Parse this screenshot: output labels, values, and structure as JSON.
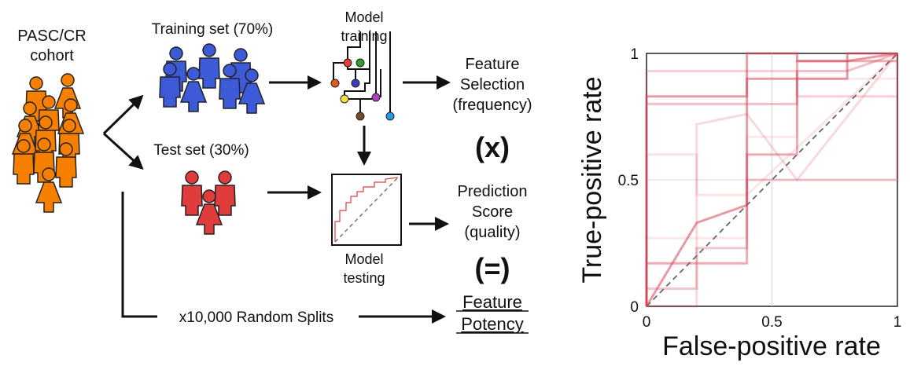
{
  "diagram": {
    "cohort_label_line1": "PASC/CR",
    "cohort_label_line2": "cohort",
    "training_label": "Training set (70%)",
    "test_label": "Test set (30%)",
    "model_training_line1": "Model",
    "model_training_line2": "training",
    "feature_selection_line1": "Feature",
    "feature_selection_line2": "Selection",
    "feature_selection_line3": "(frequency)",
    "times_symbol": "(x)",
    "prediction_line1": "Prediction",
    "prediction_line2": "Score",
    "prediction_line3": "(quality)",
    "equals_symbol": "(=)",
    "feature_potency_line1": "Feature",
    "feature_potency_line2": "Potency",
    "model_testing_line1": "Model",
    "model_testing_line2": "testing",
    "random_splits_label": "x10,000 Random Splits",
    "colors": {
      "cohort": "#f77f00",
      "training": "#3d5bd9",
      "test": "#e03c3c",
      "tree_nodes": [
        "#e03c3c",
        "#2ca02c",
        "#3d3dbf",
        "#f0e040",
        "#b040c0",
        "#7a4a2a",
        "#20a0e0",
        "#e05a20"
      ]
    }
  },
  "chart_data": {
    "type": "line",
    "xlabel": "False-positive rate",
    "ylabel": "True-positive rate",
    "xlim": [
      0,
      1
    ],
    "ylim": [
      0,
      1
    ],
    "x_ticks": [
      "0",
      "0.5",
      "1"
    ],
    "y_ticks": [
      "0",
      "0.5",
      "1"
    ],
    "grid": true,
    "diagonal_reference": true,
    "series": [
      {
        "opacity": 0.55,
        "x": [
          0,
          0,
          0.4,
          0.4,
          0.6,
          0.6,
          0.8,
          0.8,
          1
        ],
        "y": [
          0,
          0.83,
          0.83,
          0.9,
          0.9,
          0.9,
          0.9,
          0.97,
          1
        ]
      },
      {
        "opacity": 0.55,
        "x": [
          0,
          0.2,
          0.2,
          0.4,
          0.4,
          0.6,
          0.6,
          0.8,
          0.8,
          1
        ],
        "y": [
          0,
          0.33,
          0.33,
          0.4,
          1,
          1,
          0.97,
          0.97,
          1,
          1
        ]
      },
      {
        "opacity": 0.45,
        "x": [
          0,
          0,
          0.4,
          0.4,
          0.6,
          0.6,
          1
        ],
        "y": [
          0,
          0.17,
          0.17,
          0.6,
          0.6,
          0.97,
          0.97
        ]
      },
      {
        "opacity": 0.35,
        "x": [
          0,
          0,
          0.2,
          0.4,
          0.4,
          0.6,
          0.6,
          0.8,
          1
        ],
        "y": [
          0,
          0.8,
          0.8,
          0.8,
          0.8,
          0.8,
          0.93,
          0.93,
          1
        ]
      },
      {
        "opacity": 0.3,
        "x": [
          0,
          0,
          0.2,
          0.2,
          0.4,
          0.4,
          1,
          1
        ],
        "y": [
          0,
          0.07,
          0.07,
          0.23,
          0.23,
          0.5,
          0.5,
          1
        ]
      },
      {
        "opacity": 0.25,
        "x": [
          0,
          0,
          0.2,
          0.2,
          0.6,
          0.6,
          1
        ],
        "y": [
          0,
          0.93,
          0.93,
          0.93,
          0.93,
          0.83,
          0.83
        ]
      },
      {
        "opacity": 0.2,
        "x": [
          0,
          0.2,
          0.2,
          0.4,
          0.4,
          0.6,
          0.6,
          1
        ],
        "y": [
          0,
          0,
          0.72,
          0.76,
          0.76,
          0.5,
          0.5,
          1
        ]
      },
      {
        "opacity": 0.15,
        "x": [
          0,
          0,
          0.2,
          0.2,
          0.4,
          1
        ],
        "y": [
          0,
          0.6,
          0.6,
          0.44,
          0.44,
          1
        ]
      },
      {
        "opacity": 0.12,
        "x": [
          0,
          0,
          0.4,
          0.4,
          0.6,
          0.6,
          1
        ],
        "y": [
          0,
          0.27,
          0.27,
          0.67,
          0.67,
          0.9,
          0.9
        ]
      }
    ],
    "line_color": "#d9475a"
  }
}
